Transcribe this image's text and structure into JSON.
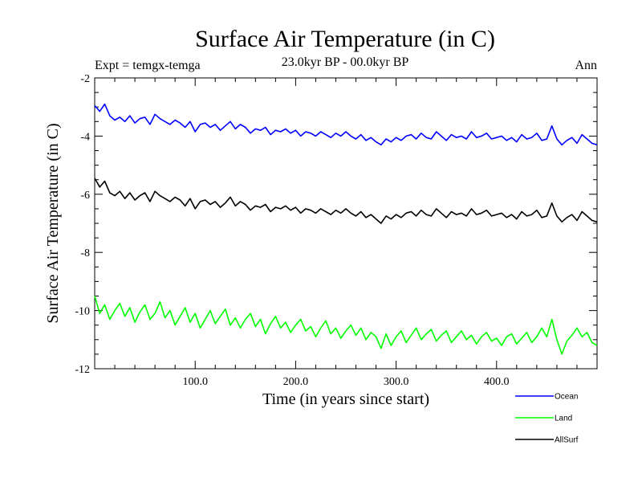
{
  "chart_data": {
    "type": "line",
    "title": "Surface Air Temperature (in C)",
    "subtitle": "23.0kyr BP - 00.0kyr BP",
    "annotation_left": "Expt = temgx-temga",
    "annotation_right": "Ann",
    "xlabel": "Time (in years since start)",
    "ylabel": "Surface Air Temperature (in C)",
    "xlim": [
      0,
      500
    ],
    "ylim": [
      -12,
      -2
    ],
    "xticks": [
      100,
      200,
      300,
      400
    ],
    "xtick_labels": [
      "100.0",
      "200.0",
      "300.0",
      "400.0"
    ],
    "yticks": [
      -12,
      -10,
      -8,
      -6,
      -4,
      -2
    ],
    "ytick_labels": [
      "-12",
      "-10",
      "-8",
      "-6",
      "-4",
      "-2"
    ],
    "legend_placement": "below-right",
    "series": [
      {
        "name": "Ocean",
        "color": "#0000ff",
        "x": [
          0,
          5,
          10,
          15,
          20,
          25,
          30,
          35,
          40,
          45,
          50,
          55,
          60,
          65,
          70,
          75,
          80,
          85,
          90,
          95,
          100,
          105,
          110,
          115,
          120,
          125,
          130,
          135,
          140,
          145,
          150,
          155,
          160,
          165,
          170,
          175,
          180,
          185,
          190,
          195,
          200,
          205,
          210,
          215,
          220,
          225,
          230,
          235,
          240,
          245,
          250,
          255,
          260,
          265,
          270,
          275,
          280,
          285,
          290,
          295,
          300,
          305,
          310,
          315,
          320,
          325,
          330,
          335,
          340,
          345,
          350,
          355,
          360,
          365,
          370,
          375,
          380,
          385,
          390,
          395,
          400,
          405,
          410,
          415,
          420,
          425,
          430,
          435,
          440,
          445,
          450,
          455,
          460,
          465,
          470,
          475,
          480,
          485,
          490,
          495,
          500
        ],
        "values": [
          -2.95,
          -3.15,
          -2.9,
          -3.3,
          -3.45,
          -3.35,
          -3.5,
          -3.3,
          -3.55,
          -3.4,
          -3.35,
          -3.6,
          -3.25,
          -3.4,
          -3.5,
          -3.6,
          -3.45,
          -3.55,
          -3.7,
          -3.5,
          -3.85,
          -3.6,
          -3.55,
          -3.7,
          -3.6,
          -3.8,
          -3.65,
          -3.5,
          -3.75,
          -3.6,
          -3.7,
          -3.9,
          -3.75,
          -3.8,
          -3.7,
          -3.95,
          -3.8,
          -3.85,
          -3.75,
          -3.9,
          -3.8,
          -4.0,
          -3.85,
          -3.9,
          -4.0,
          -3.85,
          -3.95,
          -4.05,
          -3.9,
          -4.0,
          -3.85,
          -4.0,
          -4.1,
          -3.95,
          -4.15,
          -4.05,
          -4.2,
          -4.3,
          -4.1,
          -4.2,
          -4.05,
          -4.15,
          -4.0,
          -3.95,
          -4.1,
          -3.9,
          -4.05,
          -4.1,
          -3.85,
          -4.0,
          -4.15,
          -3.95,
          -4.05,
          -4.0,
          -4.1,
          -3.85,
          -4.05,
          -4.0,
          -3.9,
          -4.1,
          -4.05,
          -4.0,
          -4.15,
          -4.05,
          -4.2,
          -3.95,
          -4.1,
          -4.05,
          -3.9,
          -4.15,
          -4.1,
          -3.65,
          -4.1,
          -4.3,
          -4.15,
          -4.05,
          -4.25,
          -3.95,
          -4.1,
          -4.25,
          -4.3
        ]
      },
      {
        "name": "Land",
        "color": "#00ff00",
        "x": [
          0,
          5,
          10,
          15,
          20,
          25,
          30,
          35,
          40,
          45,
          50,
          55,
          60,
          65,
          70,
          75,
          80,
          85,
          90,
          95,
          100,
          105,
          110,
          115,
          120,
          125,
          130,
          135,
          140,
          145,
          150,
          155,
          160,
          165,
          170,
          175,
          180,
          185,
          190,
          195,
          200,
          205,
          210,
          215,
          220,
          225,
          230,
          235,
          240,
          245,
          250,
          255,
          260,
          265,
          270,
          275,
          280,
          285,
          290,
          295,
          300,
          305,
          310,
          315,
          320,
          325,
          330,
          335,
          340,
          345,
          350,
          355,
          360,
          365,
          370,
          375,
          380,
          385,
          390,
          395,
          400,
          405,
          410,
          415,
          420,
          425,
          430,
          435,
          440,
          445,
          450,
          455,
          460,
          465,
          470,
          475,
          480,
          485,
          490,
          495,
          500
        ],
        "values": [
          -9.5,
          -10.1,
          -9.8,
          -10.3,
          -10.0,
          -9.75,
          -10.2,
          -9.9,
          -10.4,
          -10.05,
          -9.8,
          -10.3,
          -10.1,
          -9.7,
          -10.25,
          -10.0,
          -10.5,
          -10.2,
          -9.9,
          -10.4,
          -10.1,
          -10.6,
          -10.3,
          -10.0,
          -10.45,
          -10.2,
          -9.95,
          -10.5,
          -10.25,
          -10.6,
          -10.3,
          -10.1,
          -10.55,
          -10.3,
          -10.8,
          -10.45,
          -10.2,
          -10.6,
          -10.4,
          -10.75,
          -10.5,
          -10.3,
          -10.7,
          -10.55,
          -10.9,
          -10.6,
          -10.35,
          -10.8,
          -10.6,
          -10.95,
          -10.7,
          -10.5,
          -10.85,
          -10.6,
          -11.0,
          -10.75,
          -10.9,
          -11.3,
          -10.8,
          -11.2,
          -10.9,
          -10.7,
          -11.1,
          -10.85,
          -10.6,
          -11.0,
          -10.8,
          -10.65,
          -11.05,
          -10.85,
          -10.7,
          -11.1,
          -10.9,
          -10.7,
          -11.0,
          -10.85,
          -11.15,
          -10.9,
          -10.75,
          -11.05,
          -10.95,
          -11.2,
          -10.9,
          -10.8,
          -11.15,
          -10.95,
          -10.75,
          -11.1,
          -10.9,
          -10.6,
          -10.9,
          -10.3,
          -11.0,
          -11.5,
          -11.05,
          -10.85,
          -10.6,
          -10.9,
          -10.75,
          -11.1,
          -11.2
        ]
      },
      {
        "name": "AllSurf",
        "color": "#000000",
        "x": [
          0,
          5,
          10,
          15,
          20,
          25,
          30,
          35,
          40,
          45,
          50,
          55,
          60,
          65,
          70,
          75,
          80,
          85,
          90,
          95,
          100,
          105,
          110,
          115,
          120,
          125,
          130,
          135,
          140,
          145,
          150,
          155,
          160,
          165,
          170,
          175,
          180,
          185,
          190,
          195,
          200,
          205,
          210,
          215,
          220,
          225,
          230,
          235,
          240,
          245,
          250,
          255,
          260,
          265,
          270,
          275,
          280,
          285,
          290,
          295,
          300,
          305,
          310,
          315,
          320,
          325,
          330,
          335,
          340,
          345,
          350,
          355,
          360,
          365,
          370,
          375,
          380,
          385,
          390,
          395,
          400,
          405,
          410,
          415,
          420,
          425,
          430,
          435,
          440,
          445,
          450,
          455,
          460,
          465,
          470,
          475,
          480,
          485,
          490,
          495,
          500
        ],
        "values": [
          -5.45,
          -5.75,
          -5.55,
          -5.95,
          -6.05,
          -5.9,
          -6.15,
          -5.95,
          -6.2,
          -6.05,
          -5.95,
          -6.25,
          -5.9,
          -6.05,
          -6.15,
          -6.25,
          -6.1,
          -6.2,
          -6.4,
          -6.15,
          -6.5,
          -6.25,
          -6.2,
          -6.35,
          -6.25,
          -6.45,
          -6.3,
          -6.1,
          -6.4,
          -6.25,
          -6.35,
          -6.55,
          -6.4,
          -6.45,
          -6.35,
          -6.6,
          -6.45,
          -6.5,
          -6.4,
          -6.55,
          -6.45,
          -6.65,
          -6.5,
          -6.55,
          -6.65,
          -6.5,
          -6.6,
          -6.7,
          -6.55,
          -6.65,
          -6.5,
          -6.65,
          -6.75,
          -6.6,
          -6.8,
          -6.7,
          -6.85,
          -7.0,
          -6.75,
          -6.85,
          -6.7,
          -6.8,
          -6.65,
          -6.6,
          -6.75,
          -6.55,
          -6.7,
          -6.75,
          -6.5,
          -6.65,
          -6.8,
          -6.6,
          -6.7,
          -6.65,
          -6.75,
          -6.5,
          -6.7,
          -6.65,
          -6.55,
          -6.75,
          -6.7,
          -6.65,
          -6.8,
          -6.7,
          -6.85,
          -6.6,
          -6.75,
          -6.7,
          -6.55,
          -6.8,
          -6.75,
          -6.3,
          -6.75,
          -6.95,
          -6.8,
          -6.7,
          -6.9,
          -6.6,
          -6.75,
          -6.9,
          -6.95
        ]
      }
    ]
  }
}
